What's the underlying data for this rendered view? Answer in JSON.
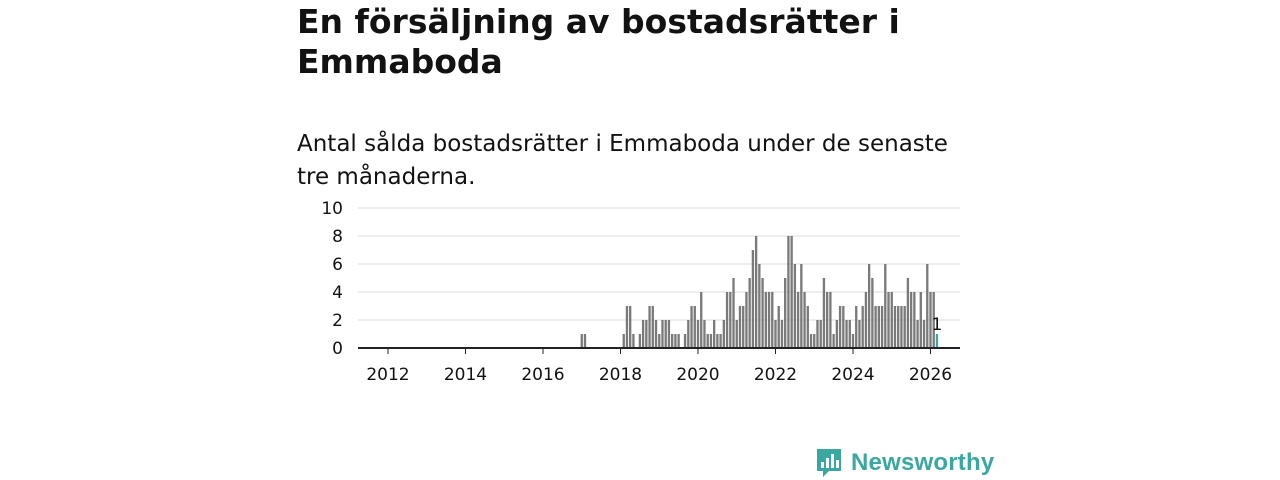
{
  "title": "En försäljning av bostadsrätter i Emmaboda",
  "subtitle": "Antal sålda bostadsrätter i Emmaboda under de senaste tre månaderna.",
  "brand": "Newsworthy",
  "colors": {
    "bar": "#7a7a7a",
    "highlight": "#3aa7a0",
    "grid": "#dddddd",
    "axis": "#222222",
    "brand": "#3aa7a0"
  },
  "chart_data": {
    "type": "bar",
    "title": "En försäljning av bostadsrätter i Emmaboda",
    "xlabel": "",
    "ylabel": "",
    "ylim": [
      0,
      10
    ],
    "yticks": [
      0,
      2,
      4,
      6,
      8,
      10
    ],
    "xticks": [
      2012,
      2014,
      2016,
      2018,
      2020,
      2022,
      2024,
      2026
    ],
    "xlim": [
      2011.5,
      2026.9
    ],
    "start": 2011.5,
    "step": 0.0833333,
    "values": [
      0,
      0,
      0,
      0,
      0,
      0,
      0,
      0,
      0,
      0,
      0,
      0,
      0,
      0,
      0,
      0,
      0,
      0,
      0,
      0,
      0,
      0,
      0,
      0,
      0,
      0,
      0,
      0,
      0,
      0,
      0,
      0,
      0,
      0,
      0,
      0,
      0,
      0,
      0,
      0,
      0,
      0,
      0,
      0,
      0,
      0,
      0,
      0,
      0,
      0,
      0,
      0,
      0,
      0,
      0,
      0,
      0,
      0,
      0,
      0,
      0,
      0,
      0,
      0,
      0,
      0,
      1,
      1,
      0,
      0,
      0,
      0,
      0,
      0,
      0,
      0,
      0,
      0,
      0,
      1,
      3,
      3,
      1,
      0,
      1,
      2,
      2,
      3,
      3,
      2,
      1,
      2,
      2,
      2,
      1,
      1,
      1,
      0,
      1,
      2,
      3,
      3,
      2,
      4,
      2,
      1,
      1,
      2,
      1,
      1,
      2,
      4,
      4,
      5,
      2,
      3,
      3,
      4,
      5,
      7,
      8,
      6,
      5,
      4,
      4,
      4,
      2,
      3,
      2,
      5,
      8,
      8,
      6,
      4,
      6,
      4,
      3,
      1,
      1,
      2,
      2,
      5,
      4,
      4,
      1,
      2,
      3,
      3,
      2,
      2,
      1,
      3,
      2,
      3,
      4,
      6,
      5,
      3,
      3,
      3,
      6,
      4,
      4,
      3,
      3,
      3,
      3,
      5,
      4,
      4,
      2,
      4,
      2,
      6,
      4,
      4,
      1
    ],
    "highlight": {
      "label": "1",
      "value": 1
    }
  }
}
